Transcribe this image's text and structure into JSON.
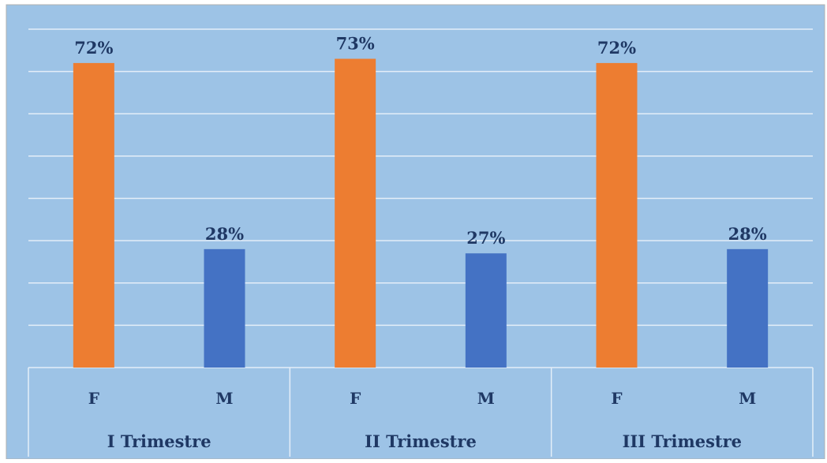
{
  "chart_data": {
    "type": "bar",
    "groups": [
      {
        "label": "I Trimestre",
        "bars": [
          {
            "category": "F",
            "value": 72,
            "label": "72%"
          },
          {
            "category": "M",
            "value": 28,
            "label": "28%"
          }
        ]
      },
      {
        "label": "II Trimestre",
        "bars": [
          {
            "category": "F",
            "value": 73,
            "label": "73%"
          },
          {
            "category": "M",
            "value": 27,
            "label": "27%"
          }
        ]
      },
      {
        "label": "III Trimestre",
        "bars": [
          {
            "category": "F",
            "value": 72,
            "label": "72%"
          },
          {
            "category": "M",
            "value": 28,
            "label": "28%"
          }
        ]
      }
    ],
    "ylim": [
      0,
      80
    ],
    "grid": true,
    "title": "",
    "xlabel": "",
    "ylabel": ""
  },
  "colors": {
    "background": "#9DC3E6",
    "F": "#ED7D31",
    "M": "#4472C4",
    "label_text": "#1F3864",
    "grid": "#E4EEF8",
    "border": "#B0B0B0"
  }
}
